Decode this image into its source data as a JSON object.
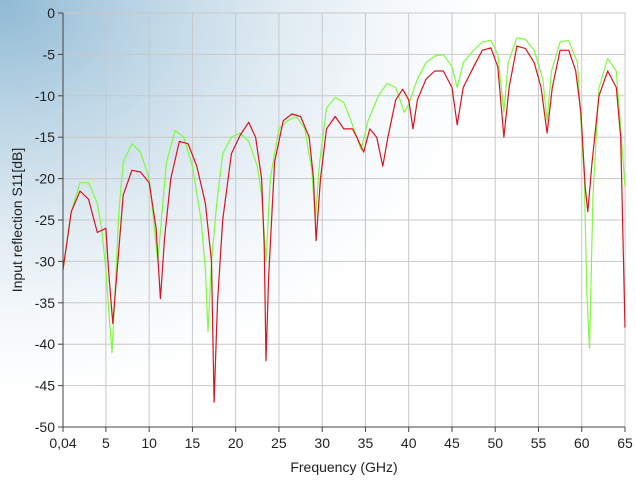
{
  "chart_data": {
    "type": "line",
    "title": "",
    "xlabel": "Frequency (GHz)",
    "ylabel": "Input reflection S11[dB]",
    "xlim": [
      0.04,
      65
    ],
    "ylim": [
      -50,
      0
    ],
    "x_ticks": [
      0.04,
      5,
      10,
      15,
      20,
      25,
      30,
      35,
      40,
      45,
      50,
      55,
      60,
      65
    ],
    "x_tick_labels": [
      "0,04",
      "5",
      "10",
      "15",
      "20",
      "25",
      "30",
      "35",
      "40",
      "45",
      "50",
      "55",
      "60",
      "65"
    ],
    "y_ticks": [
      0,
      -5,
      -10,
      -15,
      -20,
      -25,
      -30,
      -35,
      -40,
      -45,
      -50
    ],
    "y_tick_labels": [
      "0",
      "-5",
      "-10",
      "-15",
      "-20",
      "-25",
      "-30",
      "-35",
      "-40",
      "-45",
      "-50"
    ],
    "grid": true,
    "legend": "none",
    "series": [
      {
        "color": "#7CFC3C",
        "points": [
          [
            0.04,
            -31
          ],
          [
            1,
            -24
          ],
          [
            2,
            -20.5
          ],
          [
            3,
            -20.5
          ],
          [
            4,
            -23
          ],
          [
            4.5,
            -26
          ],
          [
            5,
            -31
          ],
          [
            5.4,
            -37
          ],
          [
            5.7,
            -41
          ],
          [
            6,
            -35
          ],
          [
            6.5,
            -24
          ],
          [
            7,
            -18
          ],
          [
            8,
            -15.8
          ],
          [
            9,
            -16.8
          ],
          [
            10,
            -20
          ],
          [
            10.6,
            -26
          ],
          [
            11,
            -30
          ],
          [
            11.5,
            -24
          ],
          [
            12,
            -18
          ],
          [
            13,
            -14.2
          ],
          [
            14,
            -15
          ],
          [
            15,
            -18.5
          ],
          [
            16,
            -25
          ],
          [
            16.5,
            -31
          ],
          [
            16.8,
            -38.5
          ],
          [
            17.2,
            -30
          ],
          [
            17.8,
            -23
          ],
          [
            18.5,
            -17
          ],
          [
            19.5,
            -15
          ],
          [
            20.5,
            -14.5
          ],
          [
            21.5,
            -15.5
          ],
          [
            22.5,
            -18.5
          ],
          [
            23,
            -22
          ],
          [
            23.5,
            -30
          ],
          [
            24,
            -20
          ],
          [
            25,
            -14
          ],
          [
            26,
            -13
          ],
          [
            27,
            -12.5
          ],
          [
            28,
            -14
          ],
          [
            28.8,
            -19
          ],
          [
            29.2,
            -25
          ],
          [
            29.7,
            -18
          ],
          [
            30.5,
            -11.5
          ],
          [
            31.5,
            -10.2
          ],
          [
            32.5,
            -10.8
          ],
          [
            33.5,
            -13.5
          ],
          [
            34.5,
            -16.5
          ],
          [
            35.3,
            -13
          ],
          [
            36.5,
            -10
          ],
          [
            37.5,
            -8.5
          ],
          [
            38.5,
            -9
          ],
          [
            39.5,
            -12
          ],
          [
            40,
            -11
          ],
          [
            41,
            -8
          ],
          [
            42,
            -6
          ],
          [
            43,
            -5.2
          ],
          [
            44,
            -5
          ],
          [
            45,
            -6.5
          ],
          [
            45.6,
            -9
          ],
          [
            46.3,
            -6
          ],
          [
            47.5,
            -4.5
          ],
          [
            48.5,
            -3.5
          ],
          [
            49.5,
            -3.3
          ],
          [
            50.3,
            -5
          ],
          [
            51,
            -12
          ],
          [
            51.5,
            -6
          ],
          [
            52.5,
            -3
          ],
          [
            53.5,
            -3.2
          ],
          [
            54.5,
            -4.5
          ],
          [
            55.5,
            -8
          ],
          [
            56,
            -13
          ],
          [
            56.5,
            -7
          ],
          [
            57.5,
            -3.5
          ],
          [
            58.5,
            -3.3
          ],
          [
            59.5,
            -6
          ],
          [
            60.3,
            -20
          ],
          [
            60.6,
            -34
          ],
          [
            60.9,
            -40.5
          ],
          [
            61.3,
            -22
          ],
          [
            62,
            -9
          ],
          [
            63,
            -5.5
          ],
          [
            64,
            -7
          ],
          [
            64.5,
            -14
          ],
          [
            65,
            -21
          ]
        ]
      },
      {
        "color": "#E0101C",
        "points": [
          [
            0.04,
            -31
          ],
          [
            1,
            -24
          ],
          [
            2,
            -21.5
          ],
          [
            3,
            -22.5
          ],
          [
            4,
            -26.5
          ],
          [
            5,
            -26
          ],
          [
            5.3,
            -31
          ],
          [
            5.8,
            -37.5
          ],
          [
            6.3,
            -31
          ],
          [
            7,
            -22
          ],
          [
            8,
            -19
          ],
          [
            9,
            -19.2
          ],
          [
            10,
            -20.5
          ],
          [
            10.8,
            -26
          ],
          [
            11.3,
            -34.5
          ],
          [
            11.8,
            -27
          ],
          [
            12.5,
            -20
          ],
          [
            13.5,
            -15.5
          ],
          [
            14.5,
            -15.8
          ],
          [
            15.5,
            -18.5
          ],
          [
            16.5,
            -23
          ],
          [
            17.2,
            -30
          ],
          [
            17.5,
            -47
          ],
          [
            17.9,
            -35
          ],
          [
            18.5,
            -25
          ],
          [
            19.5,
            -17
          ],
          [
            20.5,
            -14.8
          ],
          [
            21.5,
            -13.2
          ],
          [
            22.3,
            -15
          ],
          [
            23,
            -20
          ],
          [
            23.3,
            -28
          ],
          [
            23.5,
            -42
          ],
          [
            23.8,
            -32
          ],
          [
            24.5,
            -18
          ],
          [
            25.5,
            -13
          ],
          [
            26.5,
            -12.2
          ],
          [
            27.5,
            -12.5
          ],
          [
            28.5,
            -15
          ],
          [
            29,
            -20
          ],
          [
            29.3,
            -27.5
          ],
          [
            29.8,
            -20
          ],
          [
            30.5,
            -14
          ],
          [
            31.5,
            -12.5
          ],
          [
            32.5,
            -14
          ],
          [
            33.5,
            -14
          ],
          [
            34,
            -15
          ],
          [
            34.8,
            -16.8
          ],
          [
            35.5,
            -14
          ],
          [
            36.3,
            -15
          ],
          [
            37,
            -18.5
          ],
          [
            37.6,
            -15
          ],
          [
            38.5,
            -10.5
          ],
          [
            39.3,
            -9.2
          ],
          [
            40,
            -10.5
          ],
          [
            40.5,
            -14
          ],
          [
            41,
            -10.5
          ],
          [
            42,
            -8
          ],
          [
            43,
            -7
          ],
          [
            44,
            -7
          ],
          [
            45,
            -9
          ],
          [
            45.6,
            -13.5
          ],
          [
            46.3,
            -9
          ],
          [
            47.5,
            -6.5
          ],
          [
            48.5,
            -4.5
          ],
          [
            49.5,
            -4.2
          ],
          [
            50.3,
            -6.5
          ],
          [
            51,
            -15
          ],
          [
            51.6,
            -9
          ],
          [
            52.5,
            -4
          ],
          [
            53.5,
            -4.3
          ],
          [
            54.5,
            -6
          ],
          [
            55.3,
            -9
          ],
          [
            56,
            -14.5
          ],
          [
            56.6,
            -9
          ],
          [
            57.5,
            -4.5
          ],
          [
            58.5,
            -4.5
          ],
          [
            59.3,
            -7
          ],
          [
            59.9,
            -12
          ],
          [
            60.4,
            -21
          ],
          [
            60.7,
            -24
          ],
          [
            61.2,
            -18
          ],
          [
            62,
            -10
          ],
          [
            63,
            -7
          ],
          [
            64,
            -9
          ],
          [
            64.5,
            -15
          ],
          [
            65,
            -38
          ]
        ]
      }
    ]
  }
}
